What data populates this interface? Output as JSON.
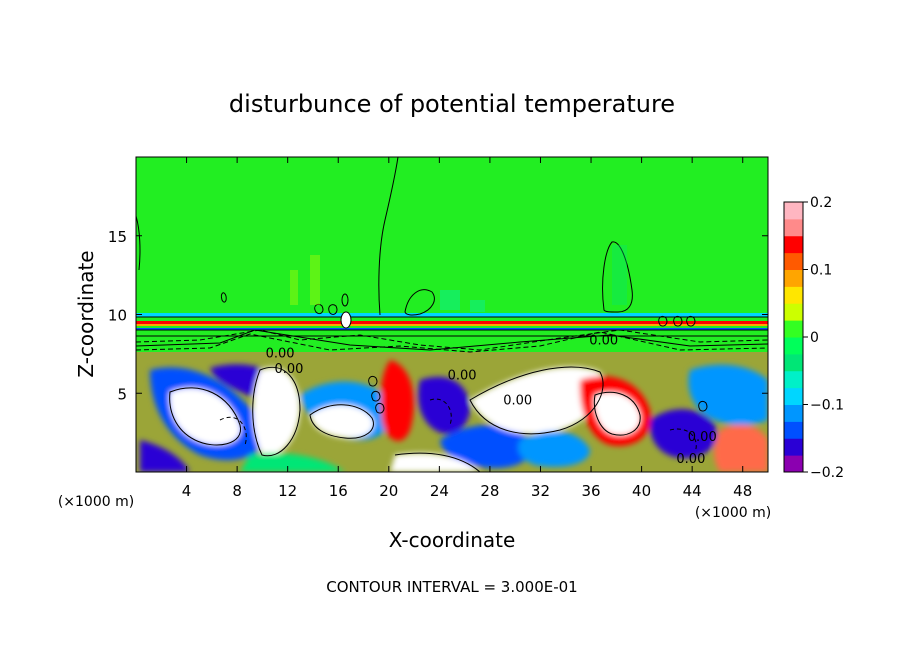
{
  "chart_data": {
    "type": "heatmap",
    "title": "disturbunce of potential temperature",
    "xlabel": "X-coordinate",
    "ylabel": "Z-coordinate",
    "x_unit_left": "(×1000 m)",
    "x_unit_right": "(×1000 m)",
    "xlim": [
      0,
      50
    ],
    "ylim": [
      0,
      20
    ],
    "x_ticks": [
      4,
      8,
      12,
      16,
      20,
      24,
      28,
      32,
      36,
      40,
      44,
      48
    ],
    "y_ticks": [
      5,
      10,
      15
    ],
    "footnote": "CONTOUR INTERVAL = 3.000E-01",
    "colorbar": {
      "range": [
        -0.2,
        0.2
      ],
      "tick_labels": [
        "0.2",
        "0.1",
        "0",
        "−0.1",
        "−0.2"
      ],
      "tick_values": [
        0.2,
        0.1,
        0,
        -0.1,
        -0.2
      ],
      "colors": [
        "#8b00b0",
        "#2a00d5",
        "#0050ff",
        "#0096ff",
        "#00d6ff",
        "#00f0c8",
        "#00e676",
        "#00ff5a",
        "#33ff22",
        "#ccff00",
        "#ffe600",
        "#ffa500",
        "#ff5a00",
        "#ff0000",
        "#ff8a8a",
        "#ffb6c1"
      ]
    },
    "contour_labels": [
      {
        "text": "0.00",
        "x": 11.4,
        "z": 7.6
      },
      {
        "text": "0.00",
        "x": 12.1,
        "z": 6.6
      },
      {
        "text": "0.00",
        "x": 25.8,
        "z": 6.2
      },
      {
        "text": "0.00",
        "x": 30.2,
        "z": 4.6
      },
      {
        "text": "0.00",
        "x": 44.8,
        "z": 2.3
      },
      {
        "text": "0.00",
        "x": 43.9,
        "z": 0.9
      },
      {
        "text": "0.00",
        "x": 37.0,
        "z": 8.4
      }
    ],
    "background_value": 0
  }
}
